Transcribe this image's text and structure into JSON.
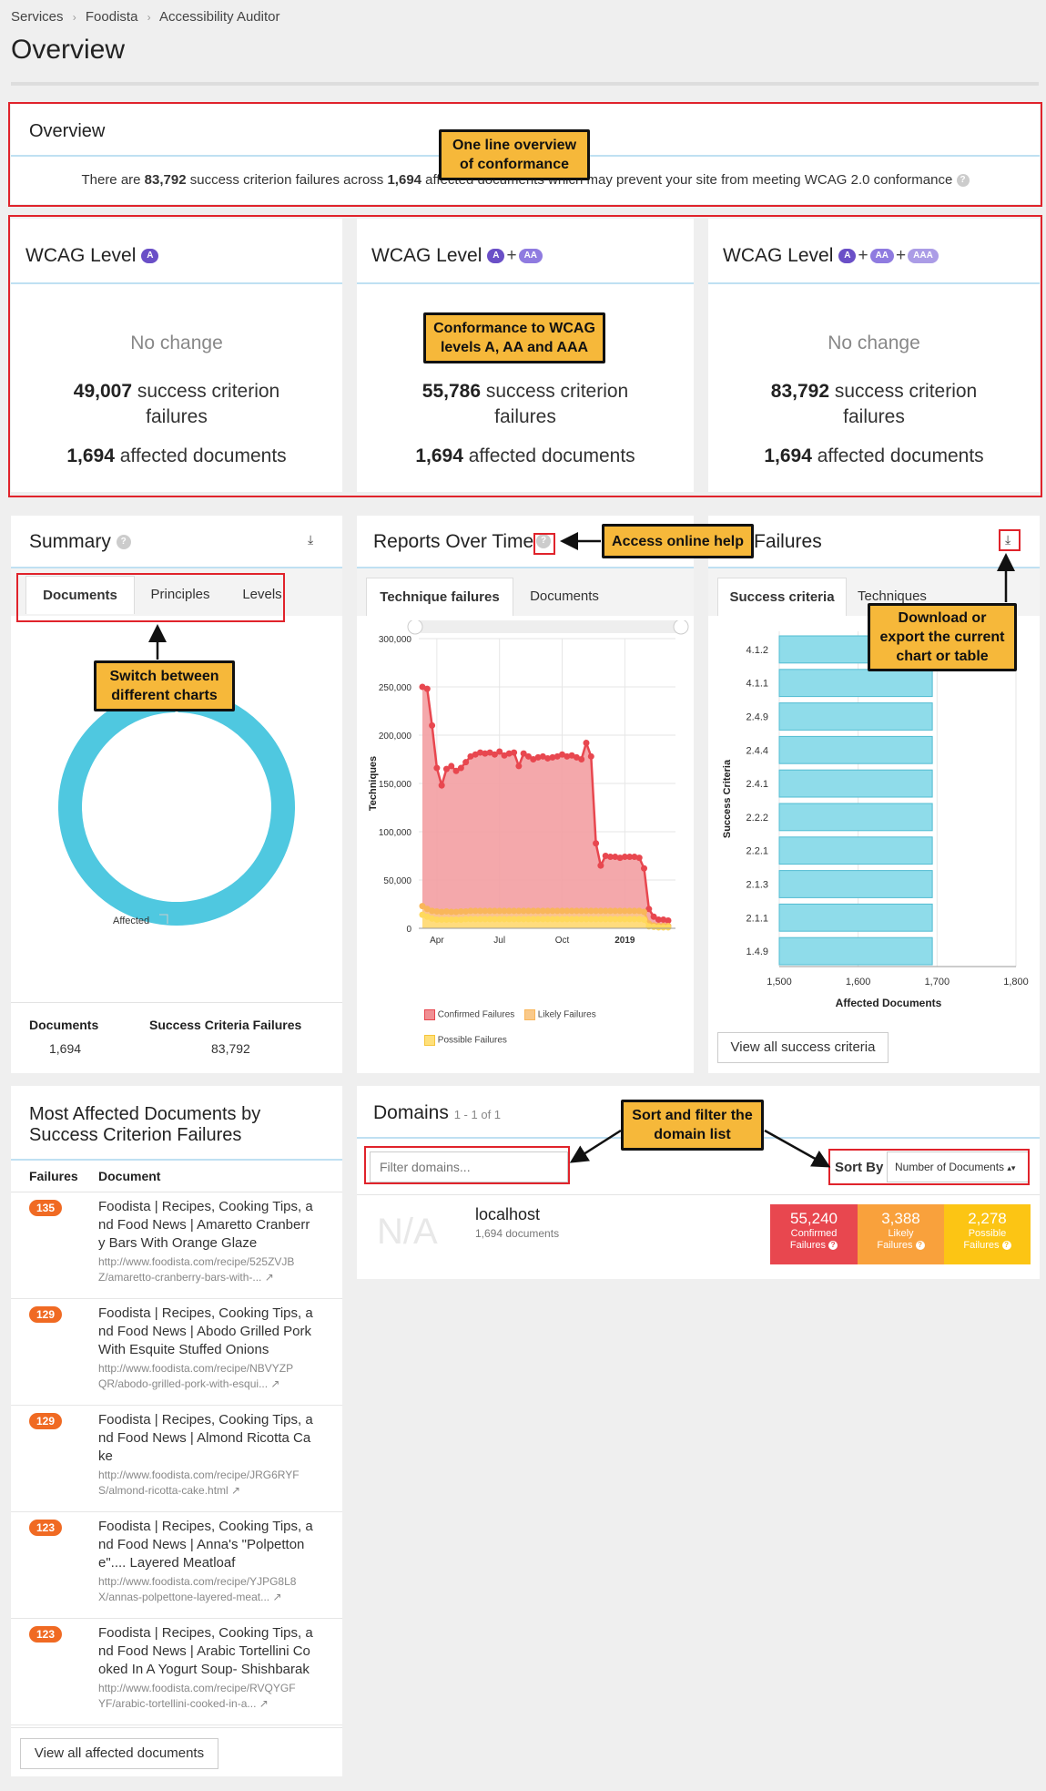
{
  "breadcrumb": [
    "Services",
    "Foodista",
    "Accessibility Auditor"
  ],
  "page_title": "Overview",
  "overview": {
    "title": "Overview",
    "sentence_pre": "There are ",
    "failures": "83,792",
    "sentence_mid": " success criterion failures across ",
    "documents": "1,694",
    "sentence_post": " affected documents which may prevent your site from meeting WCAG 2.0 conformance"
  },
  "wcag": [
    {
      "title": "WCAG Level",
      "badges": [
        "A"
      ],
      "status": "No change",
      "failures": "49,007",
      "failures_label": "success criterion failures",
      "documents": "1,694",
      "documents_label": "affected documents"
    },
    {
      "title": "WCAG Level",
      "badges": [
        "A",
        "AA"
      ],
      "status": "",
      "failures": "55,786",
      "failures_label": "success criterion failures",
      "documents": "1,694",
      "documents_label": "affected documents"
    },
    {
      "title": "WCAG Level",
      "badges": [
        "A",
        "AA",
        "AAA"
      ],
      "status": "No change",
      "failures": "83,792",
      "failures_label": "success criterion failures",
      "documents": "1,694",
      "documents_label": "affected documents"
    }
  ],
  "summary": {
    "title": "Summary",
    "tabs": [
      "Documents",
      "Principles",
      "Levels"
    ],
    "donut_label": "Affected",
    "stats": [
      {
        "label": "Documents",
        "value": "1,694"
      },
      {
        "label": "Success Criteria Failures",
        "value": "83,792"
      }
    ]
  },
  "reports": {
    "title": "Reports Over Time",
    "tabs": [
      "Technique failures",
      "Documents"
    ]
  },
  "top_failures": {
    "title": "Failures",
    "tabs": [
      "Success criteria",
      "Techniques"
    ],
    "button": "View all success criteria"
  },
  "most_affected": {
    "title": "Most Affected Documents by Success Criterion Failures",
    "col_failures": "Failures",
    "col_document": "Document",
    "rows": [
      {
        "count": "135",
        "lines": [
          "Foodista | Recipes, Cooking Tips, a",
          "nd Food News | Amaretto Cranberr",
          "y Bars With Orange Glaze"
        ],
        "url": [
          "http://www.foodista.com/recipe/525ZVJB",
          "Z/amaretto-cranberry-bars-with-..."
        ]
      },
      {
        "count": "129",
        "lines": [
          "Foodista | Recipes, Cooking Tips, a",
          "nd Food News | Abodo Grilled Pork",
          "With Esquite Stuffed Onions"
        ],
        "url": [
          "http://www.foodista.com/recipe/NBVYZP",
          "QR/abodo-grilled-pork-with-esqui..."
        ]
      },
      {
        "count": "129",
        "lines": [
          "Foodista | Recipes, Cooking Tips, a",
          "nd Food News | Almond Ricotta Ca",
          "ke"
        ],
        "url": [
          "http://www.foodista.com/recipe/JRG6RYF",
          "S/almond-ricotta-cake.html"
        ]
      },
      {
        "count": "123",
        "lines": [
          "Foodista | Recipes, Cooking Tips, a",
          "nd Food News | Anna's \"Polpetton",
          "e\".... Layered Meatloaf"
        ],
        "url": [
          "http://www.foodista.com/recipe/YJPG8L8",
          "X/annas-polpettone-layered-meat..."
        ]
      },
      {
        "count": "123",
        "lines": [
          "Foodista | Recipes, Cooking Tips, a",
          "nd Food News | Arabic Tortellini Co",
          "oked In A Yogurt Soup- Shishbarak"
        ],
        "url": [
          "http://www.foodista.com/recipe/RVQYGF",
          "YF/arabic-tortellini-cooked-in-a..."
        ]
      }
    ],
    "button": "View all affected documents"
  },
  "domains": {
    "title": "Domains",
    "count": "1 - 1 of 1",
    "filter_placeholder": "Filter domains...",
    "sort_label": "Sort By",
    "sort_value": "Number of Documents",
    "logo": "N/A",
    "name": "localhost",
    "documents": "1,694 documents",
    "confirmed": "55,240",
    "confirmed_label1": "Confirmed",
    "confirmed_label2": "Failures",
    "likely": "3,388",
    "likely_label1": "Likely",
    "likely_label2": "Failures",
    "possible": "2,278",
    "possible_label1": "Possible",
    "possible_label2": "Failures"
  },
  "callouts": {
    "overview": "One line overview of conformance",
    "levels": "Conformance to WCAG levels A, AA and AAA",
    "help": "Access online help",
    "download": "Download or export the current chart or table",
    "switch": "Switch between different charts",
    "sort": "Sort and filter the domain list"
  },
  "chart_data": [
    {
      "type": "area",
      "ylabel": "Techniques",
      "ylim": [
        0,
        300000
      ],
      "yticks": [
        "0",
        "50,000",
        "100,000",
        "150,000",
        "200,000",
        "250,000",
        "300,000"
      ],
      "xticks": [
        "Apr",
        "Jul",
        "Oct",
        "2019"
      ],
      "series": [
        {
          "name": "Confirmed Failures",
          "color": "#e8474f",
          "values": [
            250000,
            248000,
            210000,
            166000,
            148000,
            165000,
            168000,
            163000,
            166000,
            172000,
            178000,
            180000,
            182000,
            181000,
            182000,
            180000,
            183000,
            179000,
            181000,
            182000,
            168000,
            181000,
            178000,
            175000,
            177000,
            178000,
            176000,
            177000,
            178000,
            180000,
            178000,
            179000,
            177000,
            175000,
            192000,
            178000,
            88000,
            65000,
            75000,
            74000,
            74000,
            73000,
            74000,
            74000,
            74000,
            73000,
            62000,
            20000,
            12000,
            9000,
            9000,
            8000
          ]
        },
        {
          "name": "Likely Failures",
          "color": "#f9b65a",
          "values": [
            23000,
            20000,
            18000,
            17500,
            17000,
            17500,
            17000,
            17000,
            17500,
            17500,
            18000,
            18000,
            18000,
            18000,
            18000,
            18000,
            18000,
            18000,
            18000,
            18000,
            18000,
            18000,
            18000,
            18000,
            18000,
            18000,
            18000,
            18000,
            18000,
            18000,
            18000,
            18000,
            18000,
            18000,
            18000,
            18000,
            18000,
            18000,
            18000,
            18000,
            18000,
            18000,
            18000,
            18000,
            18000,
            18000,
            17000,
            5000,
            3000,
            2500,
            2500,
            2500
          ]
        },
        {
          "name": "Possible Failures",
          "color": "#ffd95c",
          "values": [
            14000,
            12000,
            10000,
            9000,
            9000,
            9000,
            9000,
            9000,
            9000,
            9500,
            9500,
            9500,
            9500,
            9500,
            9500,
            9500,
            9500,
            9500,
            9500,
            9500,
            9500,
            9500,
            9500,
            9500,
            9500,
            9500,
            9500,
            9500,
            9500,
            9500,
            9500,
            9500,
            9500,
            9500,
            9500,
            9500,
            9500,
            9500,
            9500,
            9500,
            9500,
            9500,
            9500,
            9500,
            9500,
            9500,
            9000,
            2000,
            1500,
            1000,
            1000,
            1000
          ]
        }
      ]
    },
    {
      "type": "bar",
      "orientation": "horizontal",
      "ylabel": "Success Criteria",
      "xlabel": "Affected Documents",
      "xlim": [
        1500,
        1800
      ],
      "xticks": [
        "1,500",
        "1,600",
        "1,700",
        "1,800"
      ],
      "categories": [
        "4.1.2",
        "4.1.1",
        "2.4.9",
        "2.4.4",
        "2.4.1",
        "2.2.2",
        "2.2.1",
        "2.1.3",
        "2.1.1",
        "1.4.9"
      ],
      "values": [
        1694,
        1694,
        1694,
        1694,
        1694,
        1694,
        1694,
        1694,
        1694,
        1694
      ],
      "color": "#8fdcea"
    },
    {
      "type": "pie",
      "label": "Affected",
      "values": [
        1694,
        6
      ],
      "colors": [
        "#4fc8e0",
        "#ffffff"
      ]
    }
  ]
}
